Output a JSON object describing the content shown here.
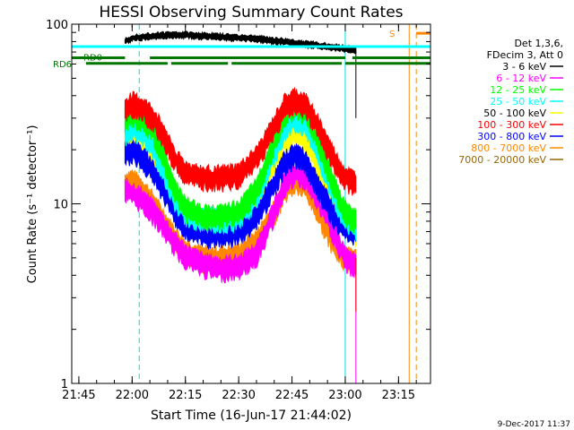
{
  "chart_data": {
    "type": "line",
    "title": "HESSI Observing Summary Count Rates",
    "xlabel": "Start Time (16-Jun-17 21:44:02)",
    "ylabel": "Count Rate (s⁻¹ detector⁻¹)",
    "y_scale": "log",
    "ylim": [
      1,
      100
    ],
    "xlim": [
      "21:43",
      "23:24"
    ],
    "x_ticks": [
      "21:45",
      "22:00",
      "22:15",
      "22:30",
      "22:45",
      "23:00",
      "23:15"
    ],
    "y_ticks": [
      "1",
      "10",
      "100"
    ],
    "legend_position": "right",
    "legend_header": [
      "Det 1,3,6,",
      "FDecim 3, Att 0"
    ],
    "footer_date": "9-Dec-2017 11:37",
    "annotations": [
      {
        "label": "RD0",
        "color": "#007700"
      },
      {
        "label": "RD6",
        "color": "#007700"
      },
      {
        "label": "S",
        "color": "#ff8800"
      }
    ],
    "series": [
      {
        "name": "3 - 6 keV",
        "color": "#000000",
        "x": [
          "21:58",
          "22:00",
          "22:05",
          "22:10",
          "22:15",
          "22:20",
          "22:25",
          "22:30",
          "22:35",
          "22:40",
          "22:45",
          "22:50",
          "22:55",
          "23:00",
          "23:03"
        ],
        "y": [
          80,
          84,
          86,
          87,
          87,
          86,
          85,
          84,
          83,
          81,
          79,
          77,
          75,
          73,
          72
        ]
      },
      {
        "name": "6 - 12 keV",
        "color": "#ff00ff",
        "x": [
          "21:58",
          "22:00",
          "22:03",
          "22:06",
          "22:09",
          "22:12",
          "22:15",
          "22:20",
          "22:25",
          "22:30",
          "22:35",
          "22:40",
          "22:43",
          "22:46",
          "22:49",
          "22:52",
          "22:55",
          "22:58",
          "23:00",
          "23:03"
        ],
        "y": [
          12,
          11.5,
          10.5,
          9,
          7.5,
          6,
          5.2,
          4.6,
          4.4,
          4.5,
          5.3,
          9,
          13,
          15,
          14,
          11,
          8.5,
          6,
          5,
          4.5
        ]
      },
      {
        "name": "12 - 25 keV",
        "color": "#00ff00",
        "x": [
          "21:58",
          "22:00",
          "22:03",
          "22:06",
          "22:09",
          "22:12",
          "22:15",
          "22:20",
          "22:25",
          "22:30",
          "22:35",
          "22:40",
          "22:43",
          "22:46",
          "22:49",
          "22:52",
          "22:55",
          "22:58",
          "23:00",
          "23:03"
        ],
        "y": [
          30,
          32,
          30,
          25,
          18,
          12,
          9.5,
          8.5,
          8.5,
          9,
          12,
          22,
          32,
          35,
          32,
          24,
          16,
          11,
          9,
          8
        ]
      },
      {
        "name": "25 - 50 keV",
        "color": "#00ffff",
        "x": [
          "21:58",
          "22:00",
          "22:03",
          "22:06",
          "22:09",
          "22:12",
          "22:15",
          "22:20",
          "22:25",
          "22:30",
          "22:35",
          "22:40",
          "22:43",
          "22:46",
          "22:49",
          "22:52",
          "22:55",
          "22:58",
          "23:00",
          "23:03"
        ],
        "y": [
          25,
          27,
          25,
          21,
          15,
          11,
          9,
          8.3,
          8.2,
          8.5,
          11,
          19,
          27,
          30,
          27,
          20,
          14,
          10,
          8.5,
          7.5
        ]
      },
      {
        "name": "50 - 100 keV",
        "color": "#ffff00",
        "x": [
          "21:58",
          "22:00",
          "22:03",
          "22:06",
          "22:09",
          "22:12",
          "22:15",
          "22:20",
          "22:25",
          "22:30",
          "22:35",
          "22:40",
          "22:43",
          "22:46",
          "22:49",
          "22:52",
          "22:55",
          "22:58",
          "23:00",
          "23:03"
        ],
        "y": [
          22,
          23,
          21,
          18,
          13,
          10,
          8.5,
          7.8,
          7.8,
          8,
          10,
          17,
          23,
          25,
          23,
          17,
          12,
          9.3,
          8,
          7
        ]
      },
      {
        "name": "100 - 300 keV",
        "color": "#ff0000",
        "x": [
          "21:58",
          "22:00",
          "22:03",
          "22:06",
          "22:09",
          "22:12",
          "22:15",
          "22:20",
          "22:25",
          "22:30",
          "22:35",
          "22:40",
          "22:43",
          "22:46",
          "22:49",
          "22:52",
          "22:55",
          "22:58",
          "23:00",
          "23:03"
        ],
        "y": [
          34,
          36,
          34,
          30,
          24,
          18,
          15,
          14,
          14,
          14.5,
          18,
          27,
          35,
          38,
          35,
          28,
          21,
          16,
          14,
          13
        ]
      },
      {
        "name": "300 - 800 keV",
        "color": "#0000ff",
        "x": [
          "21:58",
          "22:00",
          "22:03",
          "22:06",
          "22:09",
          "22:12",
          "22:15",
          "22:20",
          "22:25",
          "22:30",
          "22:35",
          "22:40",
          "22:43",
          "22:46",
          "22:49",
          "22:52",
          "22:55",
          "22:58",
          "23:00",
          "23:03"
        ],
        "y": [
          19,
          20,
          18,
          15,
          12,
          9,
          7.5,
          6.8,
          6.7,
          7,
          8.5,
          13,
          17,
          19,
          17,
          13,
          10,
          8,
          7.5,
          7
        ]
      },
      {
        "name": "800 - 7000 keV",
        "color": "#ff8800",
        "x": [
          "21:58",
          "22:00",
          "22:03",
          "22:06",
          "22:09",
          "22:12",
          "22:15",
          "22:20",
          "22:25",
          "22:30",
          "22:35",
          "22:40",
          "22:43",
          "22:46",
          "22:49",
          "22:52",
          "22:55",
          "22:58",
          "23:00",
          "23:03"
        ],
        "y": [
          13,
          13.5,
          12,
          10,
          8,
          6.5,
          5.5,
          5,
          5,
          5.2,
          6.2,
          9,
          12,
          13.5,
          12.5,
          9.5,
          7,
          5.5,
          5,
          4.8
        ]
      },
      {
        "name": "7000 - 20000 keV",
        "color": "#996600",
        "x": [],
        "y": []
      }
    ]
  }
}
